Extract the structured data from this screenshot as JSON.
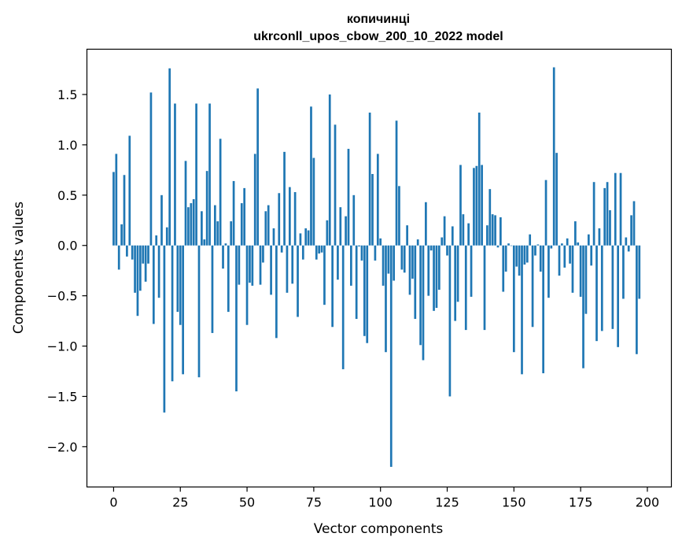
{
  "chart_data": {
    "type": "bar",
    "title": "копичинці",
    "subtitle": "ukrconll_upos_cbow_200_10_2022 model",
    "xlabel": "Vector components",
    "ylabel": "Components values",
    "xlim": [
      -10,
      209
    ],
    "ylim": [
      -2.4,
      1.95
    ],
    "xticks": [
      0,
      25,
      50,
      75,
      100,
      125,
      150,
      175,
      200
    ],
    "xtick_labels": [
      "0",
      "25",
      "50",
      "75",
      "100",
      "125",
      "150",
      "175",
      "200"
    ],
    "yticks": [
      -2.0,
      -1.5,
      -1.0,
      -0.5,
      0.0,
      0.5,
      1.0,
      1.5
    ],
    "ytick_labels": [
      "−2.0",
      "−1.5",
      "−1.0",
      "−0.5",
      "0.0",
      "0.5",
      "1.0",
      "1.5"
    ],
    "bar_color": "#1f77b4",
    "grid": false,
    "series": [
      {
        "values": [
          0.73,
          0.91,
          -0.24,
          0.21,
          0.7,
          -0.11,
          1.09,
          -0.14,
          -0.47,
          -0.7,
          -0.45,
          -0.18,
          -0.36,
          -0.18,
          1.52,
          -0.78,
          0.1,
          -0.52,
          0.5,
          -1.66,
          0.18,
          1.76,
          -1.35,
          1.41,
          -0.66,
          -0.79,
          -1.28,
          0.84,
          0.38,
          0.42,
          0.46,
          1.41,
          -1.31,
          0.34,
          0.06,
          0.74,
          1.41,
          -0.87,
          0.4,
          0.24,
          1.06,
          -0.23,
          0.02,
          -0.66,
          0.24,
          0.64,
          -1.45,
          -0.39,
          0.42,
          0.57,
          -0.79,
          -0.37,
          -0.4,
          0.91,
          1.56,
          -0.39,
          -0.17,
          0.34,
          0.4,
          -0.49,
          0.17,
          -0.92,
          0.52,
          -0.07,
          0.93,
          -0.47,
          0.58,
          -0.38,
          0.53,
          -0.71,
          0.12,
          -0.14,
          0.17,
          0.15,
          1.38,
          0.87,
          -0.14,
          -0.08,
          -0.07,
          -0.59,
          0.25,
          1.5,
          -0.81,
          1.2,
          -0.34,
          0.38,
          -1.23,
          0.29,
          0.96,
          -0.4,
          0.5,
          -0.73,
          -0.01,
          -0.15,
          -0.9,
          -0.97,
          1.32,
          0.71,
          -0.15,
          0.91,
          0.07,
          -0.4,
          -1.06,
          -0.28,
          -2.2,
          -0.35,
          1.24,
          0.59,
          -0.24,
          -0.27,
          0.2,
          -0.49,
          -0.33,
          -0.73,
          0.06,
          -0.99,
          -1.14,
          0.43,
          -0.5,
          -0.05,
          -0.65,
          -0.62,
          -0.44,
          0.08,
          0.29,
          -0.1,
          -1.5,
          0.19,
          -0.75,
          -0.56,
          0.8,
          0.31,
          -0.84,
          0.22,
          -0.51,
          0.77,
          0.79,
          1.32,
          0.8,
          -0.84,
          0.2,
          0.56,
          0.31,
          0.3,
          -0.02,
          0.28,
          -0.46,
          -0.26,
          0.02,
          0.0,
          -1.06,
          -0.21,
          -0.3,
          -1.28,
          -0.19,
          -0.17,
          0.11,
          -0.81,
          -0.1,
          0.01,
          -0.26,
          -1.27,
          0.65,
          -0.52,
          -0.03,
          1.77,
          0.92,
          -0.3,
          0.02,
          -0.22,
          0.07,
          -0.18,
          -0.47,
          0.24,
          0.03,
          -0.51,
          -1.22,
          -0.68,
          0.11,
          -0.2,
          0.63,
          -0.95,
          0.17,
          -0.85,
          0.57,
          0.63,
          0.35,
          -0.83,
          0.72,
          -1.01,
          0.72,
          -0.53,
          0.08,
          -0.06,
          0.3,
          0.44,
          -1.08,
          -0.53
        ]
      }
    ]
  }
}
